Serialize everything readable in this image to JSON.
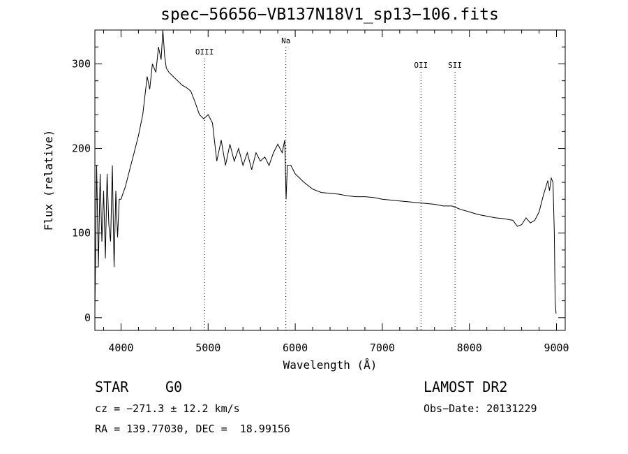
{
  "title": "spec−56656−VB137N18V1_sp13−106.fits",
  "info": {
    "class": "STAR",
    "subclass": "G0",
    "survey": "LAMOST DR2",
    "cz": "cz = −271.3 ± 12.2 km/s",
    "obs_date": "Obs−Date: 20131229",
    "coords": "RA = 139.77030, DEC =  18.99156"
  },
  "chart_data": {
    "type": "line",
    "title": "spec−56656−VB137N18V1_sp13−106.fits",
    "xlabel": "Wavelength (Å)",
    "ylabel": "Flux (relative)",
    "xlim": [
      3700,
      9100
    ],
    "ylim": [
      -15,
      340
    ],
    "x_ticks": [
      4000,
      5000,
      6000,
      7000,
      8000,
      9000
    ],
    "y_ticks": [
      0,
      100,
      200,
      300
    ],
    "grid": false,
    "series": [
      {
        "x": [
          3700,
          3720,
          3740,
          3760,
          3780,
          3800,
          3820,
          3840,
          3860,
          3880,
          3900,
          3920,
          3940,
          3960,
          3980,
          4000,
          4050,
          4100,
          4150,
          4200,
          4250,
          4300,
          4330,
          4360,
          4400,
          4430,
          4460,
          4480,
          4500,
          4520,
          4550,
          4600,
          4650,
          4700,
          4750,
          4800,
          4850,
          4900,
          4950,
          5000,
          5050,
          5100,
          5150,
          5200,
          5250,
          5300,
          5350,
          5400,
          5450,
          5500,
          5550,
          5600,
          5650,
          5700,
          5750,
          5800,
          5850,
          5880,
          5895,
          5910,
          5950,
          6000,
          6100,
          6200,
          6300,
          6400,
          6500,
          6600,
          6700,
          6800,
          6900,
          7000,
          7100,
          7200,
          7300,
          7400,
          7500,
          7600,
          7700,
          7800,
          7850,
          7900,
          8000,
          8100,
          8200,
          8300,
          8400,
          8500,
          8550,
          8600,
          8650,
          8700,
          8750,
          8800,
          8850,
          8900,
          8920,
          8940,
          8960,
          8975,
          8985,
          8995
        ],
        "values": [
          10,
          180,
          60,
          170,
          90,
          150,
          70,
          170,
          110,
          90,
          180,
          60,
          150,
          95,
          140,
          140,
          155,
          175,
          195,
          215,
          240,
          285,
          270,
          300,
          290,
          320,
          305,
          340,
          310,
          295,
          290,
          285,
          280,
          275,
          272,
          268,
          255,
          240,
          235,
          240,
          230,
          185,
          210,
          180,
          205,
          185,
          200,
          180,
          195,
          175,
          195,
          185,
          190,
          180,
          195,
          205,
          195,
          210,
          140,
          180,
          180,
          170,
          160,
          152,
          148,
          147,
          146,
          144,
          143,
          143,
          142,
          140,
          139,
          138,
          137,
          136,
          135,
          134,
          132,
          132,
          130,
          128,
          125,
          122,
          120,
          118,
          117,
          115,
          108,
          110,
          118,
          112,
          115,
          125,
          145,
          162,
          150,
          165,
          160,
          100,
          20,
          5
        ]
      }
    ],
    "annotations": [
      {
        "label": "OIII",
        "x": 4959
      },
      {
        "label": "Na",
        "x": 5893
      },
      {
        "label": "OII",
        "x": 7444
      },
      {
        "label": "SII",
        "x": 7835
      }
    ]
  }
}
